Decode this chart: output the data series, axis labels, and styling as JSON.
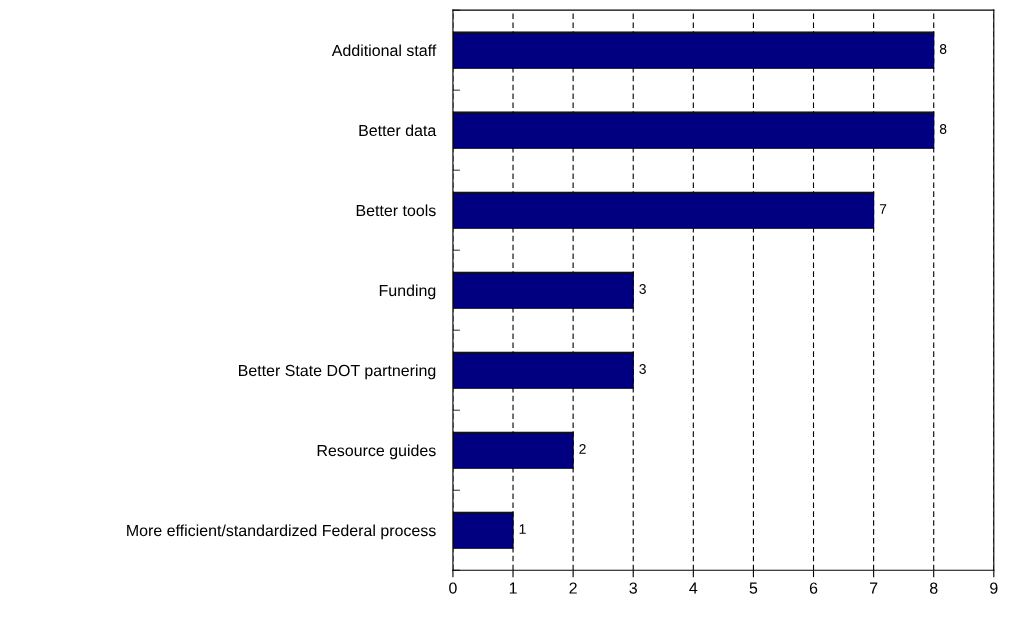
{
  "chart_data": {
    "type": "bar",
    "orientation": "horizontal",
    "categories": [
      "Additional staff",
      "Better data",
      "Better tools",
      "Funding",
      "Better State DOT partnering",
      "Resource guides",
      "More efficient/standardized Federal process"
    ],
    "values": [
      8,
      8,
      7,
      3,
      3,
      2,
      1
    ],
    "color": "#000080",
    "xlim": [
      0,
      9
    ],
    "xticks": [
      0,
      1,
      2,
      3,
      4,
      5,
      6,
      7,
      8,
      9
    ],
    "grid": "x",
    "line_style": "dashed",
    "data_labels": true
  }
}
